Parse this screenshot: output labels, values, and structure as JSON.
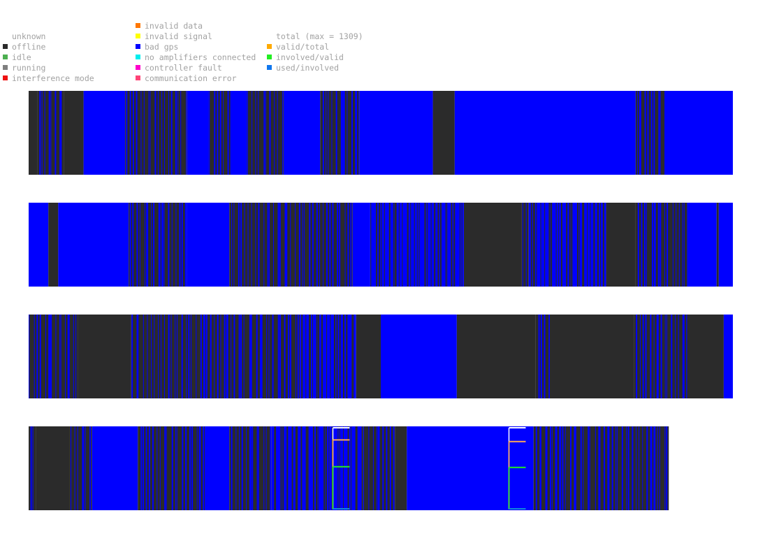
{
  "legend": {
    "status": [
      {
        "label": "unknown",
        "color": ""
      },
      {
        "label": "offline",
        "color": "#2b2b2b"
      },
      {
        "label": "idle",
        "color": "#4caf50"
      },
      {
        "label": "running",
        "color": "#7f7f7f"
      },
      {
        "label": "interference mode",
        "color": "#ee1111"
      }
    ],
    "errors": [
      {
        "label": "invalid data",
        "color": "#ff7700"
      },
      {
        "label": "invalid signal",
        "color": "#ffff00"
      },
      {
        "label": "bad gps",
        "color": "#0000ff"
      },
      {
        "label": "no amplifiers connected",
        "color": "#00eeee"
      },
      {
        "label": "controller fault",
        "color": "#ff00cc"
      },
      {
        "label": "communication error",
        "color": "#ff4477"
      }
    ],
    "counts": [
      {
        "label": "total (max = 1309)",
        "color": ""
      },
      {
        "label": "valid/total",
        "color": "#ffaa00"
      },
      {
        "label": "involved/valid",
        "color": "#22ee22"
      },
      {
        "label": "used/involved",
        "color": "#1177ee"
      }
    ]
  },
  "colors": {
    "offline": "#2b2b2b",
    "bad_gps": "#0000ff",
    "total": "#ffffff",
    "valid_total": "#ffaa55",
    "involved_valid": "#22ee22",
    "used_involved": "#1188dd"
  },
  "chart_data": {
    "type": "timeline",
    "title": "",
    "xlabel": "",
    "ylabel": "",
    "states": [
      "bad gps",
      "offline"
    ],
    "rows": [
      {
        "period": [
          0,
          1
        ],
        "segments": [
          {
            "start": 0.0,
            "end": 0.012,
            "state": "offline"
          },
          {
            "start": 0.012,
            "end": 0.05,
            "state": "offline",
            "interleaved": "bad gps"
          },
          {
            "start": 0.05,
            "end": 0.078,
            "state": "offline"
          },
          {
            "start": 0.078,
            "end": 0.137,
            "state": "bad gps"
          },
          {
            "start": 0.137,
            "end": 0.225,
            "state": "offline",
            "interleaved": "bad gps"
          },
          {
            "start": 0.225,
            "end": 0.255,
            "state": "bad gps"
          },
          {
            "start": 0.255,
            "end": 0.288,
            "state": "offline",
            "interleaved": "bad gps"
          },
          {
            "start": 0.288,
            "end": 0.31,
            "state": "bad gps"
          },
          {
            "start": 0.31,
            "end": 0.362,
            "state": "offline",
            "interleaved": "bad gps"
          },
          {
            "start": 0.362,
            "end": 0.414,
            "state": "bad gps"
          },
          {
            "start": 0.414,
            "end": 0.47,
            "state": "offline",
            "interleaved": "bad gps"
          },
          {
            "start": 0.47,
            "end": 0.574,
            "state": "bad gps"
          },
          {
            "start": 0.574,
            "end": 0.605,
            "state": "offline"
          },
          {
            "start": 0.605,
            "end": 0.862,
            "state": "bad gps"
          },
          {
            "start": 0.862,
            "end": 0.905,
            "state": "offline",
            "interleaved": "bad gps"
          },
          {
            "start": 0.905,
            "end": 1.0,
            "state": "bad gps"
          }
        ]
      },
      {
        "period": [
          0,
          1
        ],
        "segments": [
          {
            "start": 0.0,
            "end": 0.028,
            "state": "bad gps"
          },
          {
            "start": 0.028,
            "end": 0.042,
            "state": "offline"
          },
          {
            "start": 0.042,
            "end": 0.142,
            "state": "bad gps"
          },
          {
            "start": 0.142,
            "end": 0.225,
            "state": "offline",
            "interleaved": "bad gps"
          },
          {
            "start": 0.225,
            "end": 0.285,
            "state": "bad gps"
          },
          {
            "start": 0.285,
            "end": 0.46,
            "state": "offline",
            "interleaved": "bad gps"
          },
          {
            "start": 0.46,
            "end": 0.485,
            "state": "bad gps"
          },
          {
            "start": 0.485,
            "end": 0.618,
            "state": "bad gps",
            "interleaved": "offline"
          },
          {
            "start": 0.618,
            "end": 0.7,
            "state": "offline"
          },
          {
            "start": 0.7,
            "end": 0.71,
            "state": "offline",
            "interleaved": "bad gps"
          },
          {
            "start": 0.71,
            "end": 0.82,
            "state": "bad gps",
            "interleaved": "offline"
          },
          {
            "start": 0.82,
            "end": 0.862,
            "state": "offline"
          },
          {
            "start": 0.862,
            "end": 0.935,
            "state": "offline",
            "interleaved": "bad gps"
          },
          {
            "start": 0.935,
            "end": 0.977,
            "state": "bad gps"
          },
          {
            "start": 0.977,
            "end": 0.98,
            "state": "offline"
          },
          {
            "start": 0.98,
            "end": 1.0,
            "state": "bad gps"
          }
        ]
      },
      {
        "period": [
          0,
          1
        ],
        "segments": [
          {
            "start": 0.0,
            "end": 0.07,
            "state": "offline",
            "interleaved": "bad gps"
          },
          {
            "start": 0.07,
            "end": 0.145,
            "state": "offline"
          },
          {
            "start": 0.145,
            "end": 0.385,
            "state": "offline",
            "interleaved": "bad gps"
          },
          {
            "start": 0.385,
            "end": 0.465,
            "state": "bad gps",
            "interleaved": "offline"
          },
          {
            "start": 0.465,
            "end": 0.5,
            "state": "offline"
          },
          {
            "start": 0.5,
            "end": 0.608,
            "state": "bad gps"
          },
          {
            "start": 0.608,
            "end": 0.72,
            "state": "offline"
          },
          {
            "start": 0.72,
            "end": 0.74,
            "state": "offline",
            "interleaved": "bad gps"
          },
          {
            "start": 0.74,
            "end": 0.86,
            "state": "offline"
          },
          {
            "start": 0.86,
            "end": 0.935,
            "state": "offline",
            "interleaved": "bad gps"
          },
          {
            "start": 0.935,
            "end": 0.987,
            "state": "offline"
          },
          {
            "start": 0.987,
            "end": 1.0,
            "state": "bad gps"
          }
        ]
      },
      {
        "period": [
          0,
          0.909
        ],
        "segments": [
          {
            "start": 0.0,
            "end": 0.01,
            "state": "offline",
            "interleaved": "bad gps"
          },
          {
            "start": 0.01,
            "end": 0.058,
            "state": "offline"
          },
          {
            "start": 0.058,
            "end": 0.09,
            "state": "offline",
            "interleaved": "bad gps"
          },
          {
            "start": 0.09,
            "end": 0.155,
            "state": "bad gps"
          },
          {
            "start": 0.155,
            "end": 0.25,
            "state": "offline",
            "interleaved": "bad gps"
          },
          {
            "start": 0.25,
            "end": 0.285,
            "state": "bad gps"
          },
          {
            "start": 0.285,
            "end": 0.345,
            "state": "offline",
            "interleaved": "bad gps"
          },
          {
            "start": 0.345,
            "end": 0.475,
            "state": "bad gps",
            "interleaved": "offline"
          },
          {
            "start": 0.475,
            "end": 0.52,
            "state": "offline",
            "interleaved": "bad gps"
          },
          {
            "start": 0.52,
            "end": 0.537,
            "state": "offline"
          },
          {
            "start": 0.537,
            "end": 0.717,
            "state": "bad gps"
          },
          {
            "start": 0.717,
            "end": 0.909,
            "state": "offline",
            "interleaved": "bad gps"
          }
        ]
      }
    ],
    "station_counts": {
      "max_total": 1309,
      "samples": [
        {
          "t": 0.432,
          "total": 1.0,
          "valid_total": 0.85,
          "involved_valid": 0.52,
          "used_involved": 0.0
        },
        {
          "t": 0.682,
          "total": 1.0,
          "valid_total": 0.83,
          "involved_valid": 0.51,
          "used_involved": 0.0
        }
      ]
    }
  }
}
